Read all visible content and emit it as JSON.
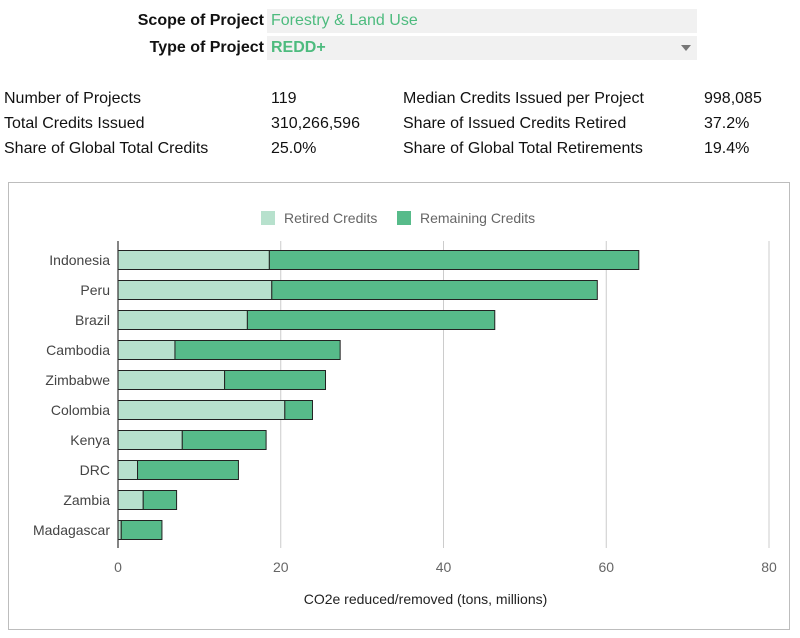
{
  "filters": {
    "scope": {
      "label": "Scope of Project",
      "value": "Forestry & Land Use"
    },
    "type": {
      "label": "Type of Project",
      "value": "REDD+"
    }
  },
  "stats": {
    "number_of_projects": {
      "label": "Number of Projects",
      "value": "119"
    },
    "total_credits_issued": {
      "label": "Total Credits Issued",
      "value": "310,266,596"
    },
    "share_global_total_credits": {
      "label": "Share of Global Total Credits",
      "value": "25.0%"
    },
    "median_credits": {
      "label": "Median Credits Issued per Project",
      "value": "998,085"
    },
    "share_retired": {
      "label": "Share of Issued Credits Retired",
      "value": "37.2%"
    },
    "share_global_retirements": {
      "label": "Share of Global Total Retirements",
      "value": "19.4%"
    }
  },
  "colors": {
    "retired": "#b7e1cd",
    "remaining": "#57bb8a",
    "accent_text": "#4dbb7e"
  },
  "chart_data": {
    "type": "bar",
    "orientation": "horizontal",
    "stacked": true,
    "categories": [
      "Indonesia",
      "Peru",
      "Brazil",
      "Cambodia",
      "Zimbabwe",
      "Colombia",
      "Kenya",
      "DRC",
      "Zambia",
      "Madagascar"
    ],
    "series": [
      {
        "name": "Retired Credits",
        "values": [
          18.6,
          18.9,
          15.9,
          7.0,
          13.1,
          20.5,
          7.9,
          2.4,
          3.1,
          0.4
        ]
      },
      {
        "name": "Remaining Credits",
        "values": [
          45.4,
          40.0,
          30.4,
          20.3,
          12.4,
          3.4,
          10.3,
          12.4,
          4.1,
          5.0
        ]
      }
    ],
    "xlabel": "CO2e reduced/removed (tons, millions)",
    "xlim": [
      0,
      80
    ],
    "xticks": [
      "0",
      "20",
      "40",
      "60",
      "80"
    ],
    "legend_position": "top",
    "grid": true
  }
}
